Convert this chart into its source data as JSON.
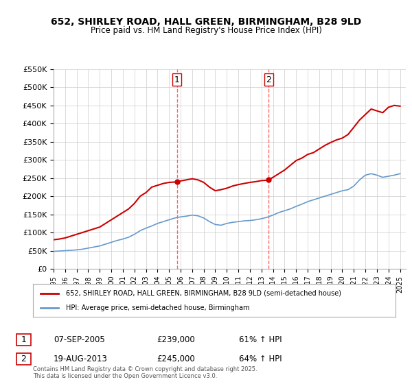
{
  "title_line1": "652, SHIRLEY ROAD, HALL GREEN, BIRMINGHAM, B28 9LD",
  "title_line2": "Price paid vs. HM Land Registry's House Price Index (HPI)",
  "ylabel": "",
  "xlabel": "",
  "ylim": [
    0,
    550000
  ],
  "yticks": [
    0,
    50000,
    100000,
    150000,
    200000,
    250000,
    300000,
    350000,
    400000,
    450000,
    500000,
    550000
  ],
  "ytick_labels": [
    "£0",
    "£50K",
    "£100K",
    "£150K",
    "£200K",
    "£250K",
    "£300K",
    "£350K",
    "£400K",
    "£450K",
    "£500K",
    "£550K"
  ],
  "xlim_start": 1995.0,
  "xlim_end": 2025.5,
  "background_color": "#ffffff",
  "grid_color": "#cccccc",
  "transaction1": {
    "date": "07-SEP-2005",
    "price": 239000,
    "year": 2005.68,
    "label": "1",
    "pct": "61%",
    "dir": "↑"
  },
  "transaction2": {
    "date": "19-AUG-2013",
    "price": 245000,
    "year": 2013.62,
    "label": "2",
    "pct": "64%",
    "dir": "↑"
  },
  "vline_color": "#ff6666",
  "property_line_color": "#cc0000",
  "hpi_line_color": "#6699cc",
  "legend_property": "652, SHIRLEY ROAD, HALL GREEN, BIRMINGHAM, B28 9LD (semi-detached house)",
  "legend_hpi": "HPI: Average price, semi-detached house, Birmingham",
  "footnote": "Contains HM Land Registry data © Crown copyright and database right 2025.\nThis data is licensed under the Open Government Licence v3.0.",
  "property_years": [
    1995.0,
    1995.5,
    1996.0,
    1996.5,
    1997.0,
    1997.5,
    1998.0,
    1998.5,
    1999.0,
    1999.5,
    2000.0,
    2000.5,
    2001.0,
    2001.5,
    2002.0,
    2002.5,
    2003.0,
    2003.5,
    2004.0,
    2004.5,
    2005.0,
    2005.5,
    2005.68,
    2006.0,
    2006.5,
    2007.0,
    2007.5,
    2008.0,
    2008.5,
    2009.0,
    2009.5,
    2010.0,
    2010.5,
    2011.0,
    2011.5,
    2012.0,
    2012.5,
    2013.0,
    2013.5,
    2013.62,
    2014.0,
    2014.5,
    2015.0,
    2015.5,
    2016.0,
    2016.5,
    2017.0,
    2017.5,
    2018.0,
    2018.5,
    2019.0,
    2019.5,
    2020.0,
    2020.5,
    2021.0,
    2021.5,
    2022.0,
    2022.5,
    2023.0,
    2023.5,
    2024.0,
    2024.5,
    2025.0
  ],
  "property_prices": [
    80000,
    82000,
    85000,
    90000,
    95000,
    100000,
    105000,
    110000,
    115000,
    125000,
    135000,
    145000,
    155000,
    165000,
    180000,
    200000,
    210000,
    225000,
    230000,
    235000,
    238000,
    239000,
    239000,
    242000,
    245000,
    248000,
    245000,
    238000,
    225000,
    215000,
    218000,
    222000,
    228000,
    232000,
    235000,
    238000,
    240000,
    243000,
    244000,
    245000,
    252000,
    262000,
    272000,
    285000,
    298000,
    305000,
    315000,
    320000,
    330000,
    340000,
    348000,
    355000,
    360000,
    370000,
    390000,
    410000,
    425000,
    440000,
    435000,
    430000,
    445000,
    450000,
    448000
  ],
  "hpi_years": [
    1995.0,
    1995.5,
    1996.0,
    1996.5,
    1997.0,
    1997.5,
    1998.0,
    1998.5,
    1999.0,
    1999.5,
    2000.0,
    2000.5,
    2001.0,
    2001.5,
    2002.0,
    2002.5,
    2003.0,
    2003.5,
    2004.0,
    2004.5,
    2005.0,
    2005.5,
    2006.0,
    2006.5,
    2007.0,
    2007.5,
    2008.0,
    2008.5,
    2009.0,
    2009.5,
    2010.0,
    2010.5,
    2011.0,
    2011.5,
    2012.0,
    2012.5,
    2013.0,
    2013.5,
    2014.0,
    2014.5,
    2015.0,
    2015.5,
    2016.0,
    2016.5,
    2017.0,
    2017.5,
    2018.0,
    2018.5,
    2019.0,
    2019.5,
    2020.0,
    2020.5,
    2021.0,
    2021.5,
    2022.0,
    2022.5,
    2023.0,
    2023.5,
    2024.0,
    2024.5,
    2025.0
  ],
  "hpi_prices": [
    48000,
    49000,
    50000,
    51000,
    52000,
    54000,
    57000,
    60000,
    63000,
    68000,
    73000,
    78000,
    82000,
    87000,
    95000,
    105000,
    112000,
    118000,
    125000,
    130000,
    135000,
    140000,
    143000,
    145000,
    148000,
    146000,
    140000,
    130000,
    122000,
    120000,
    125000,
    128000,
    130000,
    132000,
    133000,
    135000,
    138000,
    142000,
    148000,
    155000,
    160000,
    165000,
    172000,
    178000,
    185000,
    190000,
    195000,
    200000,
    205000,
    210000,
    215000,
    218000,
    228000,
    245000,
    258000,
    262000,
    258000,
    252000,
    255000,
    258000,
    262000
  ],
  "xtick_years": [
    1995,
    1996,
    1997,
    1998,
    1999,
    2000,
    2001,
    2002,
    2003,
    2004,
    2005,
    2006,
    2007,
    2008,
    2009,
    2010,
    2011,
    2012,
    2013,
    2014,
    2015,
    2016,
    2017,
    2018,
    2019,
    2020,
    2021,
    2022,
    2023,
    2024,
    2025
  ]
}
